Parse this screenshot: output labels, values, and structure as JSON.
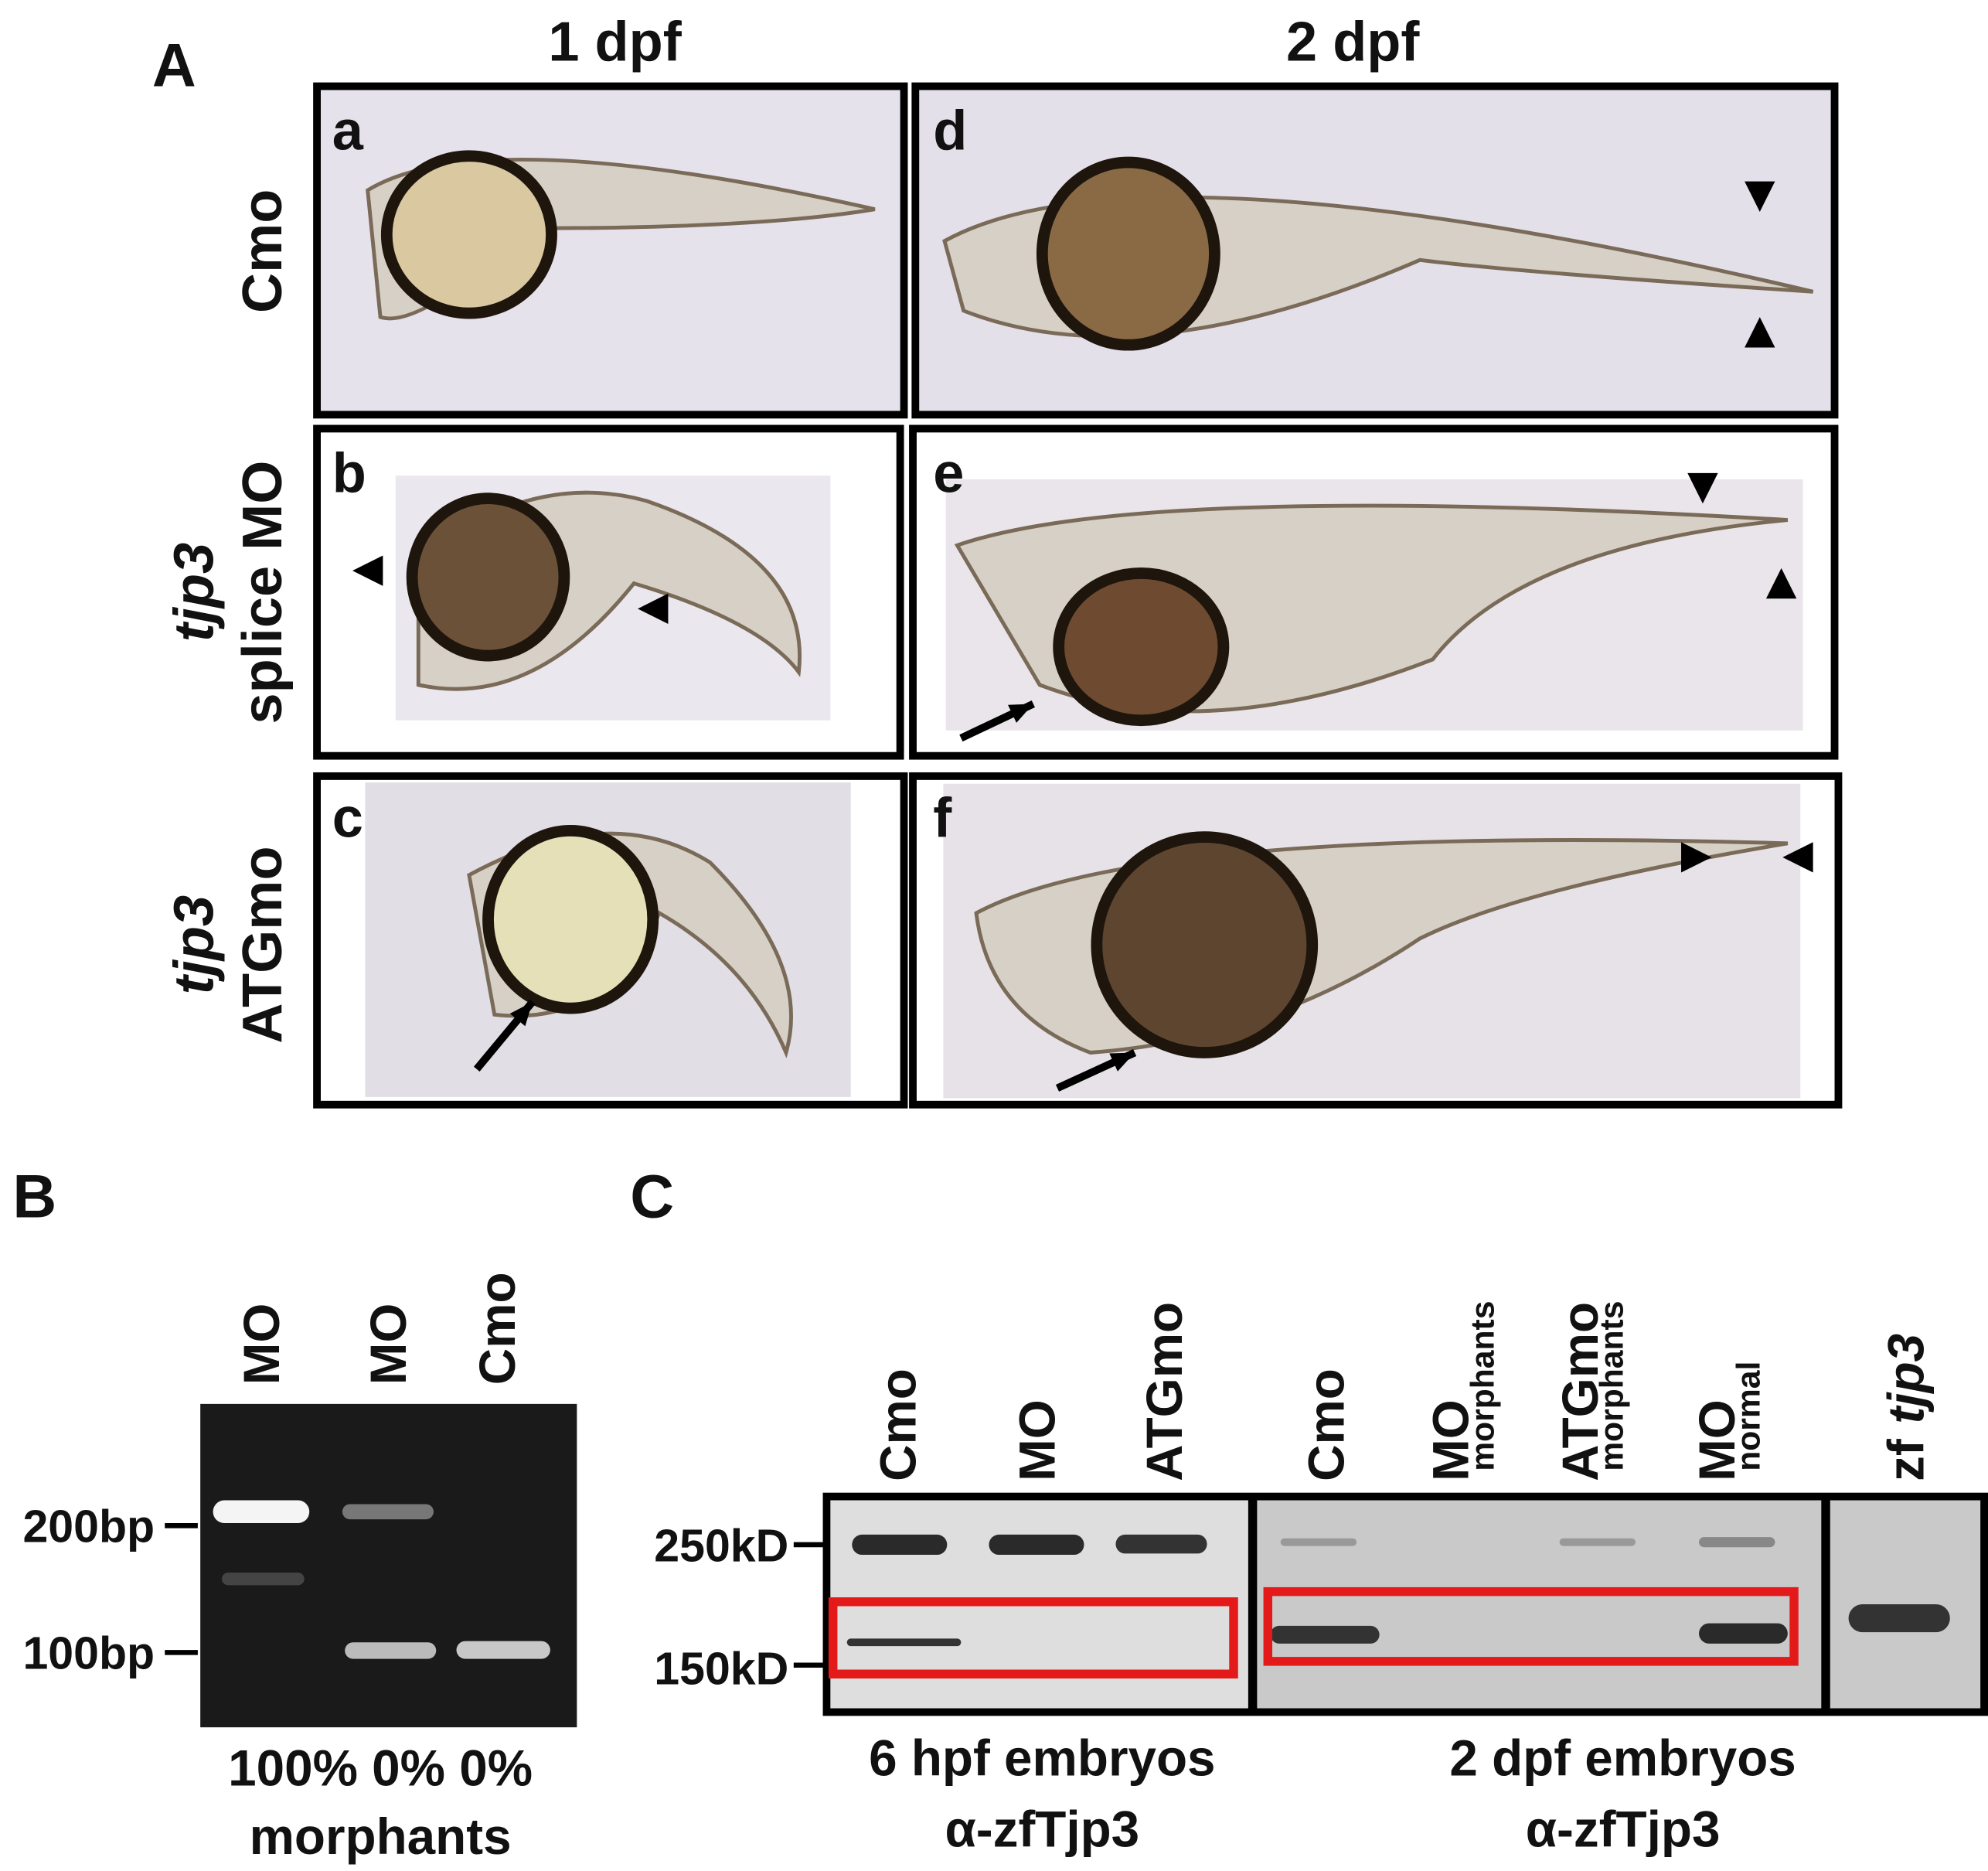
{
  "panel_a": {
    "label": "A",
    "columns": [
      "1 dpf",
      "2 dpf"
    ],
    "rows": [
      {
        "name": "Cmo"
      },
      {
        "gene": "tjp3",
        "name": "splice MO"
      },
      {
        "gene": "tjp3",
        "name": "ATGmo"
      }
    ],
    "subpanels": [
      "a",
      "b",
      "c",
      "d",
      "e",
      "f"
    ]
  },
  "panel_b": {
    "label": "B",
    "lanes": [
      "MO",
      "MO",
      "Cmo"
    ],
    "markers": [
      "200bp",
      "100bp"
    ],
    "percentages": "100% 0% 0%",
    "footer": "morphants"
  },
  "panel_c": {
    "label": "C",
    "lanes": [
      {
        "name": "Cmo"
      },
      {
        "name": "MO"
      },
      {
        "name": "ATGmo"
      },
      {
        "name": "Cmo"
      },
      {
        "name": "MO",
        "sub": "morphants"
      },
      {
        "name": "ATGmo",
        "sub": "morphants"
      },
      {
        "name": "MO",
        "sub": "normal"
      },
      {
        "prefix": "zf",
        "gene": "tjp3"
      }
    ],
    "markers": [
      "250kD",
      "150kD"
    ],
    "captions": [
      [
        "6 hpf embryos",
        "α-zfTjp3"
      ],
      [
        "2 dpf embryos",
        "α-zfTjp3"
      ]
    ]
  }
}
